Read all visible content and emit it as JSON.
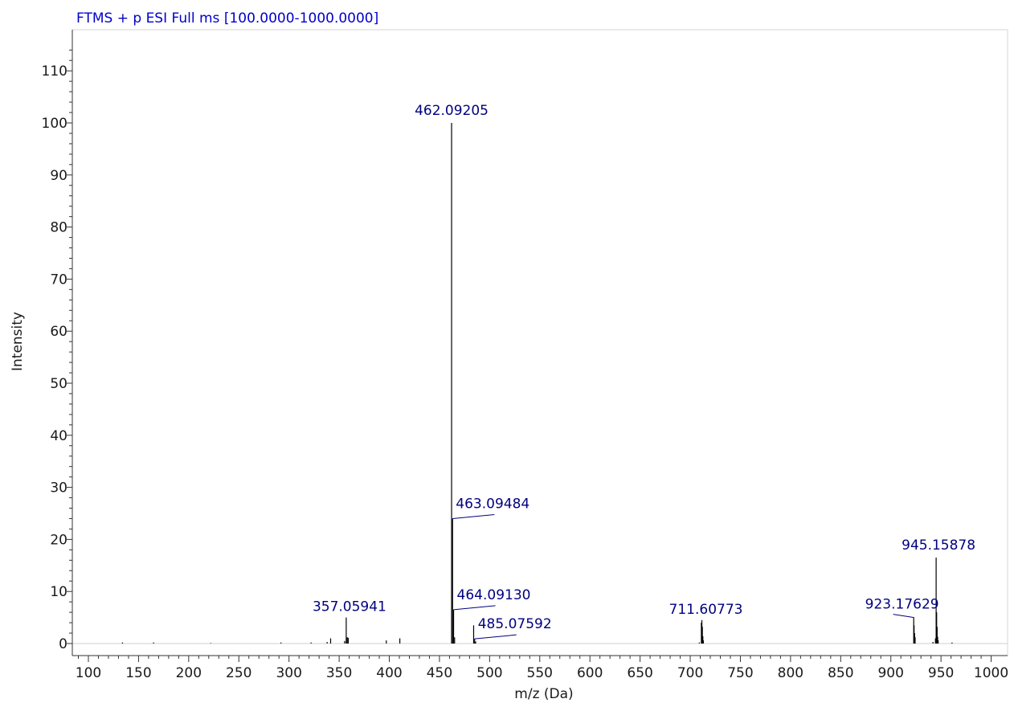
{
  "chart_data": {
    "type": "line",
    "title": "FTMS + p ESI Full ms [100.0000-1000.0000]",
    "xlabel": "m/z (Da)",
    "ylabel": "Intensity",
    "xlim": [
      90,
      1000
    ],
    "ylim": [
      -2,
      117
    ],
    "xticks": [
      100,
      150,
      200,
      250,
      300,
      350,
      400,
      450,
      500,
      550,
      600,
      650,
      700,
      750,
      800,
      850,
      900,
      950,
      1000
    ],
    "yticks": [
      0,
      10,
      20,
      30,
      40,
      50,
      60,
      70,
      80,
      90,
      100,
      110
    ],
    "grid": false,
    "colors": {
      "title": "#0000cc",
      "peak_label": "#000080",
      "stick": "#000000",
      "axis": "#333333"
    },
    "series": [
      {
        "peaks": [
          {
            "x": 134.0,
            "y": 0.2
          },
          {
            "x": 165.0,
            "y": 0.2
          },
          {
            "x": 222.0,
            "y": 0.1
          },
          {
            "x": 292.0,
            "y": 0.2
          },
          {
            "x": 322.0,
            "y": 0.2
          },
          {
            "x": 338.0,
            "y": 0.3
          },
          {
            "x": 341.5,
            "y": 1.0
          },
          {
            "x": 355.5,
            "y": 0.5
          },
          {
            "x": 357.05941,
            "y": 5.0
          },
          {
            "x": 358.06,
            "y": 1.2
          },
          {
            "x": 359.06,
            "y": 1.1
          },
          {
            "x": 397.0,
            "y": 0.6
          },
          {
            "x": 410.5,
            "y": 1.0
          },
          {
            "x": 462.09205,
            "y": 100.0
          },
          {
            "x": 463.09484,
            "y": 24.0
          },
          {
            "x": 464.0913,
            "y": 6.5
          },
          {
            "x": 465.09,
            "y": 1.2
          },
          {
            "x": 484.08,
            "y": 3.5
          },
          {
            "x": 485.07592,
            "y": 0.9
          },
          {
            "x": 486.08,
            "y": 0.4
          },
          {
            "x": 709.0,
            "y": 0.2
          },
          {
            "x": 711.1,
            "y": 4.0
          },
          {
            "x": 711.60773,
            "y": 4.5
          },
          {
            "x": 712.1,
            "y": 3.2
          },
          {
            "x": 712.6,
            "y": 1.4
          },
          {
            "x": 713.1,
            "y": 0.6
          },
          {
            "x": 922.8,
            "y": 5.0
          },
          {
            "x": 923.17629,
            "y": 3.5
          },
          {
            "x": 923.7,
            "y": 2.0
          },
          {
            "x": 924.2,
            "y": 1.2
          },
          {
            "x": 942.0,
            "y": 0.3
          },
          {
            "x": 944.5,
            "y": 1.0
          },
          {
            "x": 945.15878,
            "y": 16.5
          },
          {
            "x": 945.66,
            "y": 6.0
          },
          {
            "x": 946.16,
            "y": 3.2
          },
          {
            "x": 946.66,
            "y": 1.3
          },
          {
            "x": 947.2,
            "y": 0.6
          },
          {
            "x": 961.0,
            "y": 0.2
          }
        ]
      }
    ],
    "annotations": [
      {
        "text": "462.09205",
        "x": 462.09205,
        "y": 100.0
      },
      {
        "text": "463.09484",
        "x": 463.09484,
        "y": 24.0
      },
      {
        "text": "464.09130",
        "x": 464.0913,
        "y": 6.5
      },
      {
        "text": "485.07592",
        "x": 485.07592,
        "y": 0.9
      },
      {
        "text": "357.05941",
        "x": 357.05941,
        "y": 5.0
      },
      {
        "text": "711.60773",
        "x": 711.60773,
        "y": 4.5
      },
      {
        "text": "923.17629",
        "x": 923.17629,
        "y": 5.0
      },
      {
        "text": "945.15878",
        "x": 945.15878,
        "y": 16.5
      }
    ]
  }
}
